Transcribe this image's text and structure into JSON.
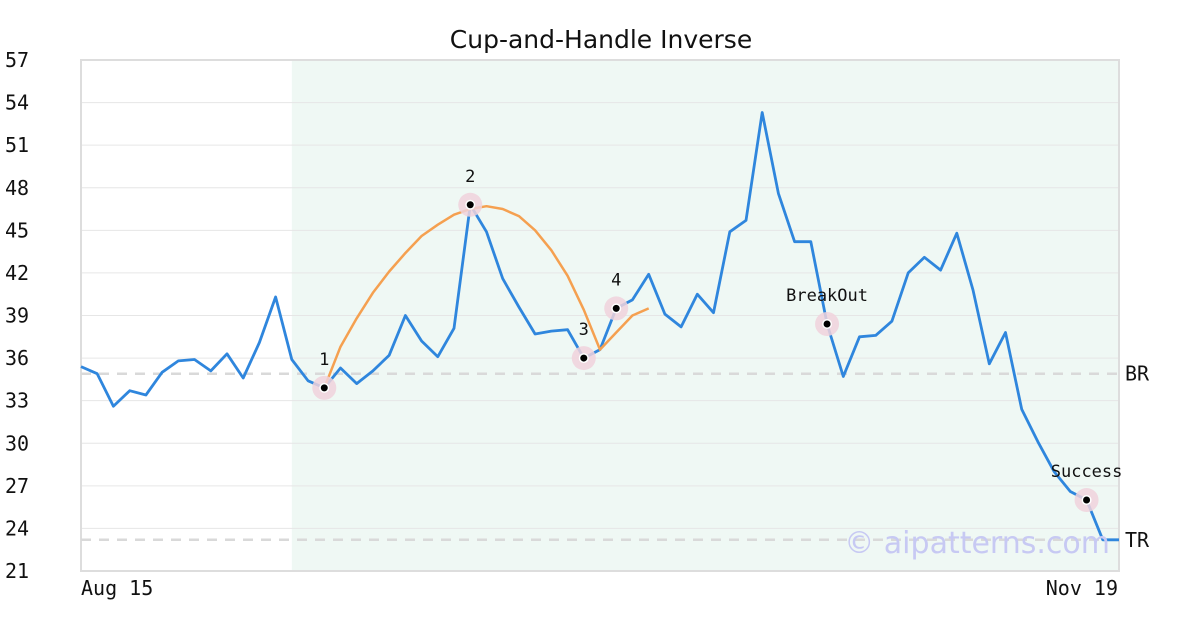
{
  "chart_data": {
    "type": "line",
    "title": "Cup-and-Handle Inverse",
    "xlabel": "",
    "ylabel": "",
    "ylim": [
      21,
      57
    ],
    "yticks": [
      21,
      24,
      27,
      30,
      33,
      36,
      39,
      42,
      45,
      48,
      51,
      54,
      57
    ],
    "x_start_label": "Aug 15",
    "x_end_label": "Nov 19",
    "grid": true,
    "colors": {
      "price": "#2f86dd",
      "fit": "#f5a050",
      "highlight": "#eff8f4",
      "marker_ring": "#f0d2dc",
      "ref_line": "#d9d9d9",
      "border": "#dddddd"
    },
    "series": [
      {
        "values": [
          35.4,
          34.9,
          32.6,
          33.7,
          33.4,
          35.0,
          35.8,
          35.9,
          35.1,
          36.3,
          34.6,
          37.1,
          40.3,
          35.9,
          34.4,
          33.9,
          35.3,
          34.2,
          35.1,
          36.2,
          39.0,
          37.2,
          36.1,
          38.1,
          46.8,
          44.9,
          41.6,
          39.6,
          37.7,
          37.9,
          38.0,
          36.0,
          36.6,
          39.5,
          40.1,
          41.9,
          39.1,
          38.2,
          40.5,
          39.2,
          44.9,
          45.7,
          53.3,
          47.6,
          44.2,
          44.2,
          38.4,
          34.7,
          37.5,
          37.6,
          38.6,
          42.0,
          43.1,
          42.2,
          44.8,
          40.8,
          35.6,
          37.8,
          32.4,
          30.1,
          28.0,
          26.6,
          26.0,
          23.2,
          23.2
        ]
      }
    ],
    "fit_curve": {
      "start_index": 15,
      "values": [
        33.9,
        36.8,
        38.8,
        40.6,
        42.1,
        43.4,
        44.6,
        45.4,
        46.1,
        46.5,
        46.7,
        46.5,
        46.0,
        45.0,
        43.6,
        41.8,
        39.4,
        36.6,
        37.8,
        39.0,
        39.5
      ]
    },
    "highlight_range": [
      13,
      64
    ],
    "ref_lines": [
      {
        "label": "BR",
        "value": 34.9
      },
      {
        "label": "TR",
        "value": 23.2
      }
    ],
    "points": [
      {
        "label": "1",
        "index": 15,
        "value": 33.9
      },
      {
        "label": "2",
        "index": 24,
        "value": 46.8
      },
      {
        "label": "3",
        "index": 31,
        "value": 36.0
      },
      {
        "label": "4",
        "index": 33,
        "value": 39.5
      },
      {
        "label": "BreakOut",
        "index": 46,
        "value": 38.4
      },
      {
        "label": "Success",
        "index": 62,
        "value": 26.0
      }
    ],
    "watermark": "© aipatterns.com"
  }
}
